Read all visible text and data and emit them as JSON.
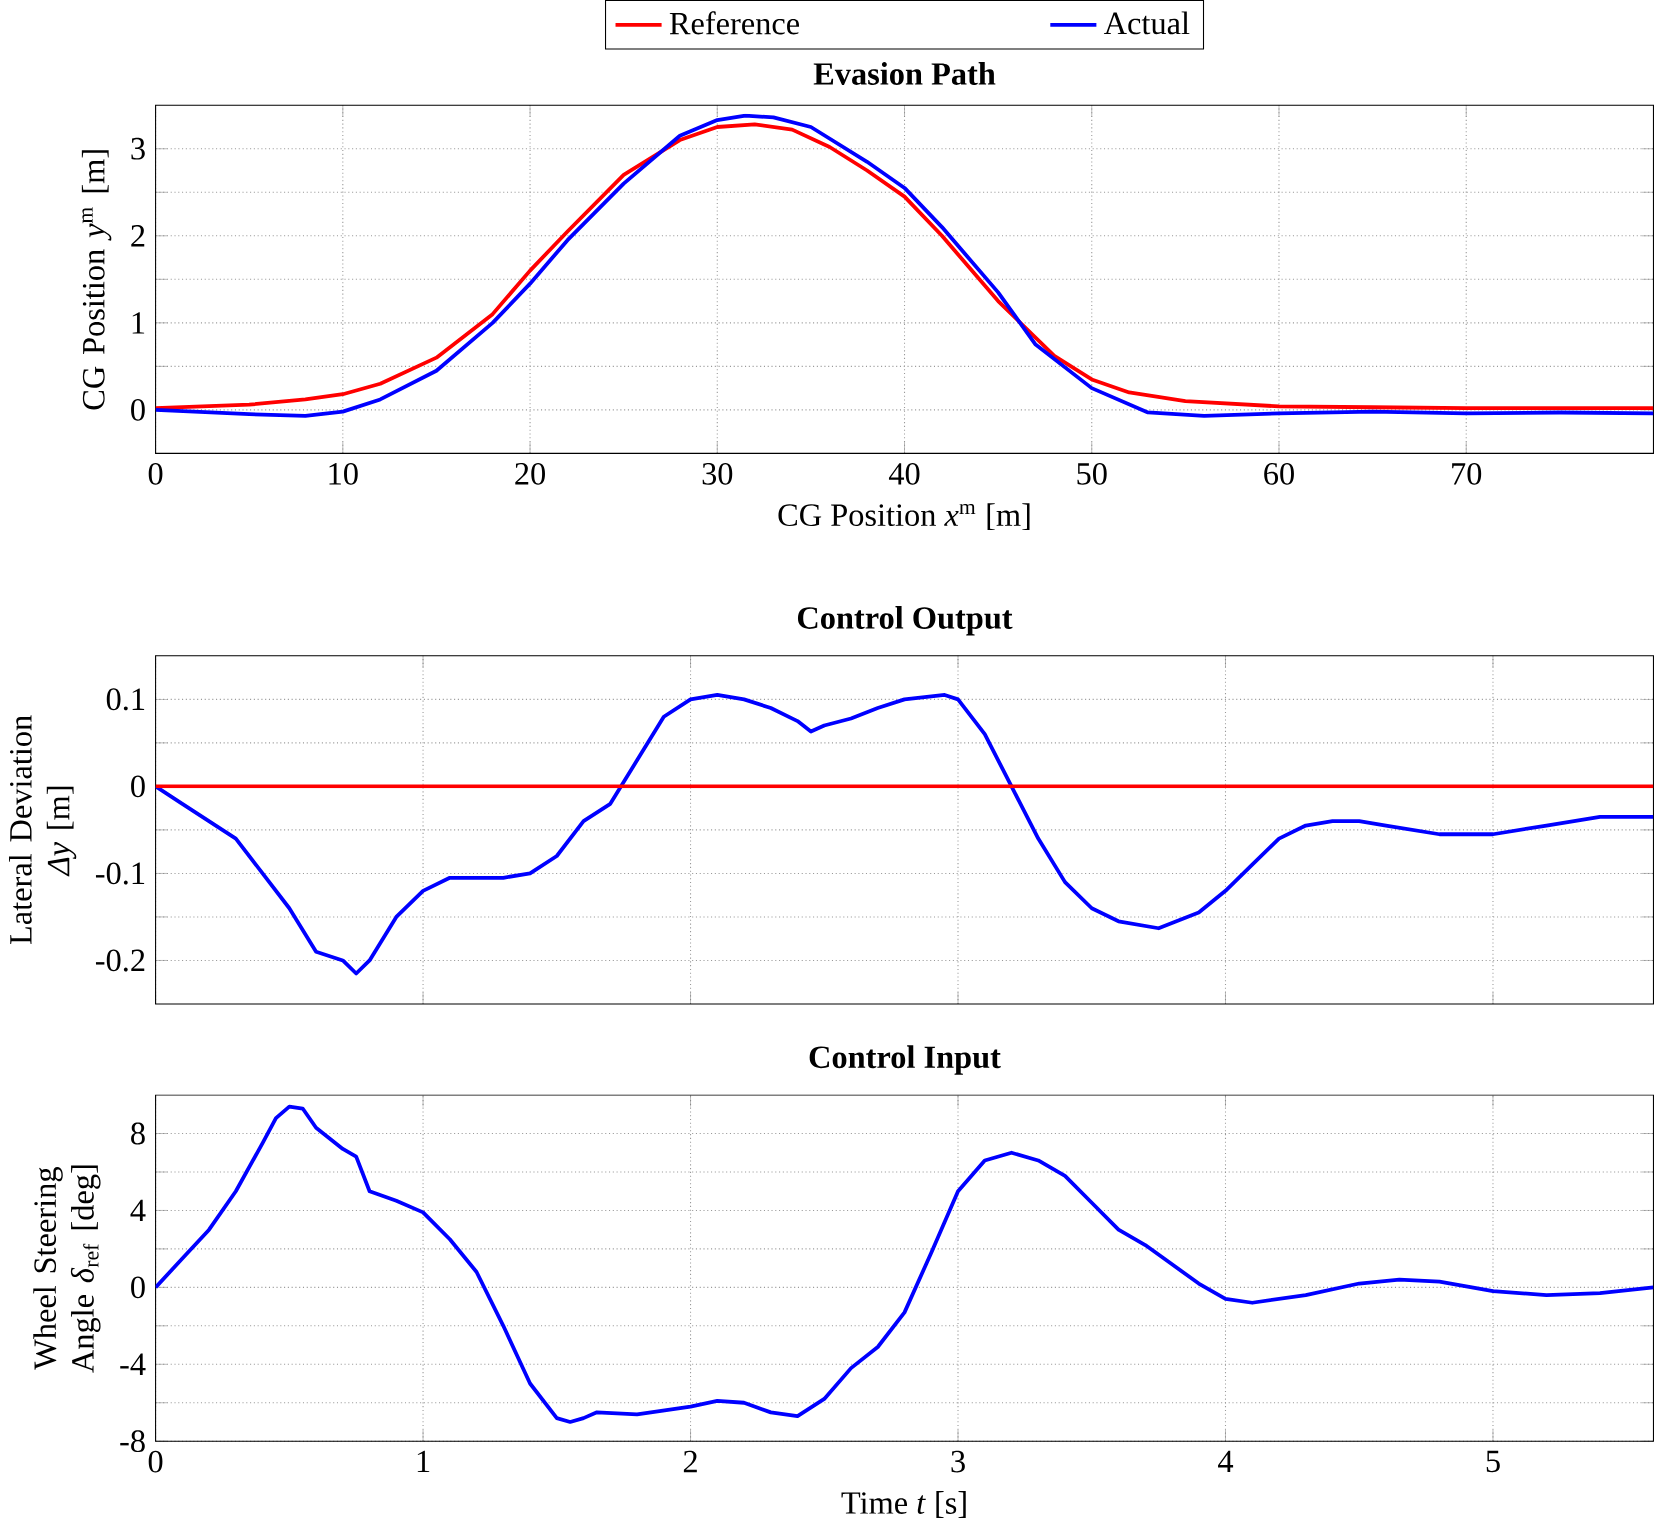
{
  "chart_data": [
    {
      "type": "line",
      "title": "Evasion Path",
      "xlabel": "CG Position *x*$^{m}$ [m]",
      "ylabel": "CG Position *y*$^{m}$ [m]",
      "xlim": [
        0,
        80
      ],
      "ylim": [
        -0.5,
        3.5
      ],
      "xticks": [
        0,
        10,
        20,
        30,
        40,
        50,
        60,
        70
      ],
      "yticks": [
        0,
        {
          "value": 0.5,
          "label": null
        },
        1,
        {
          "value": 1.5,
          "label": null
        },
        2,
        {
          "value": 2.5,
          "label": null
        },
        3
      ],
      "grid": true,
      "legend": "top",
      "line_style": "solid",
      "marker": "none",
      "series": [
        {
          "name": "Reference",
          "color": "#ff0000",
          "x": [
            0,
            5,
            8,
            10,
            12,
            15,
            18,
            20,
            22,
            25,
            28,
            30,
            32,
            34,
            36,
            38,
            40,
            42,
            45,
            48,
            50,
            52,
            55,
            60,
            65,
            70,
            80
          ],
          "values": [
            0.02,
            0.06,
            0.12,
            0.18,
            0.3,
            0.6,
            1.1,
            1.6,
            2.05,
            2.7,
            3.1,
            3.25,
            3.28,
            3.22,
            3.02,
            2.75,
            2.45,
            2.0,
            1.25,
            0.62,
            0.35,
            0.2,
            0.1,
            0.04,
            0.03,
            0.02,
            0.02
          ]
        },
        {
          "name": "Actual",
          "color": "#0000ff",
          "x": [
            0,
            5,
            8,
            10,
            12,
            15,
            18,
            20,
            22,
            25,
            28,
            30,
            31.5,
            33,
            35,
            38,
            40,
            42,
            45,
            47,
            50,
            53,
            56,
            60,
            65,
            70,
            75,
            80
          ],
          "values": [
            0,
            -0.05,
            -0.07,
            -0.02,
            0.12,
            0.45,
            1.0,
            1.45,
            1.95,
            2.6,
            3.15,
            3.33,
            3.38,
            3.36,
            3.25,
            2.85,
            2.55,
            2.1,
            1.35,
            0.75,
            0.25,
            -0.03,
            -0.07,
            -0.04,
            -0.02,
            -0.04,
            -0.03,
            -0.04
          ]
        }
      ]
    },
    {
      "type": "line",
      "title": "Control Output",
      "ylabel": "Lateral Deviation *Δy* [m]",
      "xlim": [
        0,
        5.6
      ],
      "ylim": [
        -0.25,
        0.15
      ],
      "xticks": [
        0,
        1,
        2,
        3,
        4,
        5
      ],
      "yticks": [
        -0.2,
        {
          "value": -0.15,
          "label": null
        },
        -0.1,
        {
          "value": -0.05,
          "label": null
        },
        0,
        {
          "value": 0.05,
          "label": null
        },
        0.1
      ],
      "tick_labels": "y",
      "grid": true,
      "line_style": "solid",
      "marker": "none",
      "ref_lines": [
        {
          "axis": "y",
          "value": 0,
          "color": "#ff0000"
        }
      ],
      "series": [
        {
          "color": "#0000ff",
          "x": [
            0,
            0.1,
            0.2,
            0.3,
            0.4,
            0.5,
            0.6,
            0.7,
            0.75,
            0.8,
            0.9,
            1.0,
            1.1,
            1.2,
            1.3,
            1.4,
            1.5,
            1.6,
            1.7,
            1.8,
            1.9,
            2.0,
            2.1,
            2.2,
            2.3,
            2.4,
            2.45,
            2.5,
            2.6,
            2.7,
            2.8,
            2.95,
            3.0,
            3.1,
            3.2,
            3.3,
            3.4,
            3.5,
            3.6,
            3.75,
            3.9,
            4.0,
            4.1,
            4.2,
            4.3,
            4.4,
            4.5,
            4.6,
            4.8,
            5.0,
            5.2,
            5.4,
            5.6
          ],
          "values": [
            0,
            -0.02,
            -0.04,
            -0.06,
            -0.1,
            -0.14,
            -0.19,
            -0.2,
            -0.215,
            -0.2,
            -0.15,
            -0.12,
            -0.105,
            -0.105,
            -0.105,
            -0.1,
            -0.08,
            -0.04,
            -0.02,
            0.03,
            0.08,
            0.1,
            0.105,
            0.1,
            0.09,
            0.075,
            0.063,
            0.07,
            0.078,
            0.09,
            0.1,
            0.105,
            0.1,
            0.06,
            0.0,
            -0.06,
            -0.11,
            -0.14,
            -0.155,
            -0.163,
            -0.145,
            -0.12,
            -0.09,
            -0.06,
            -0.045,
            -0.04,
            -0.04,
            -0.045,
            -0.055,
            -0.055,
            -0.045,
            -0.035,
            -0.035
          ]
        }
      ]
    },
    {
      "type": "line",
      "title": "Control Input",
      "xlabel": "Time *t* [s]",
      "ylabel": "Wheel Steering Angle *δ*$_{ref}$ [deg]",
      "xlim": [
        0,
        5.6
      ],
      "ylim": [
        -8,
        10
      ],
      "xticks": [
        0,
        1,
        2,
        3,
        4,
        5
      ],
      "yticks": [
        -8,
        {
          "value": -6,
          "label": null
        },
        -4,
        {
          "value": -2,
          "label": null
        },
        0,
        {
          "value": 2,
          "label": null
        },
        4,
        {
          "value": 6,
          "label": null
        },
        8
      ],
      "grid": true,
      "line_style": "solid",
      "marker": "none",
      "series": [
        {
          "color": "#0000ff",
          "x": [
            0,
            0.1,
            0.2,
            0.3,
            0.4,
            0.45,
            0.5,
            0.55,
            0.6,
            0.7,
            0.75,
            0.8,
            0.9,
            1.0,
            1.1,
            1.2,
            1.3,
            1.4,
            1.5,
            1.55,
            1.6,
            1.65,
            1.8,
            2.0,
            2.1,
            2.2,
            2.3,
            2.4,
            2.5,
            2.6,
            2.7,
            2.8,
            2.9,
            3.0,
            3.1,
            3.2,
            3.3,
            3.4,
            3.5,
            3.6,
            3.7,
            3.8,
            3.9,
            4.0,
            4.1,
            4.3,
            4.5,
            4.65,
            4.8,
            5.0,
            5.2,
            5.4,
            5.6
          ],
          "values": [
            0,
            1.5,
            3,
            5,
            7.5,
            8.8,
            9.4,
            9.3,
            8.3,
            7.2,
            6.8,
            5,
            4.5,
            3.9,
            2.5,
            0.8,
            -2,
            -5,
            -6.8,
            -7,
            -6.8,
            -6.5,
            -6.6,
            -6.2,
            -5.9,
            -6,
            -6.5,
            -6.7,
            -5.8,
            -4.2,
            -3.1,
            -1.3,
            1.8,
            5,
            6.6,
            7,
            6.6,
            5.8,
            4.4,
            3,
            2.2,
            1.2,
            0.2,
            -0.6,
            -0.8,
            -0.4,
            0.2,
            0.4,
            0.3,
            -0.2,
            -0.4,
            -0.3,
            0
          ]
        }
      ]
    }
  ]
}
